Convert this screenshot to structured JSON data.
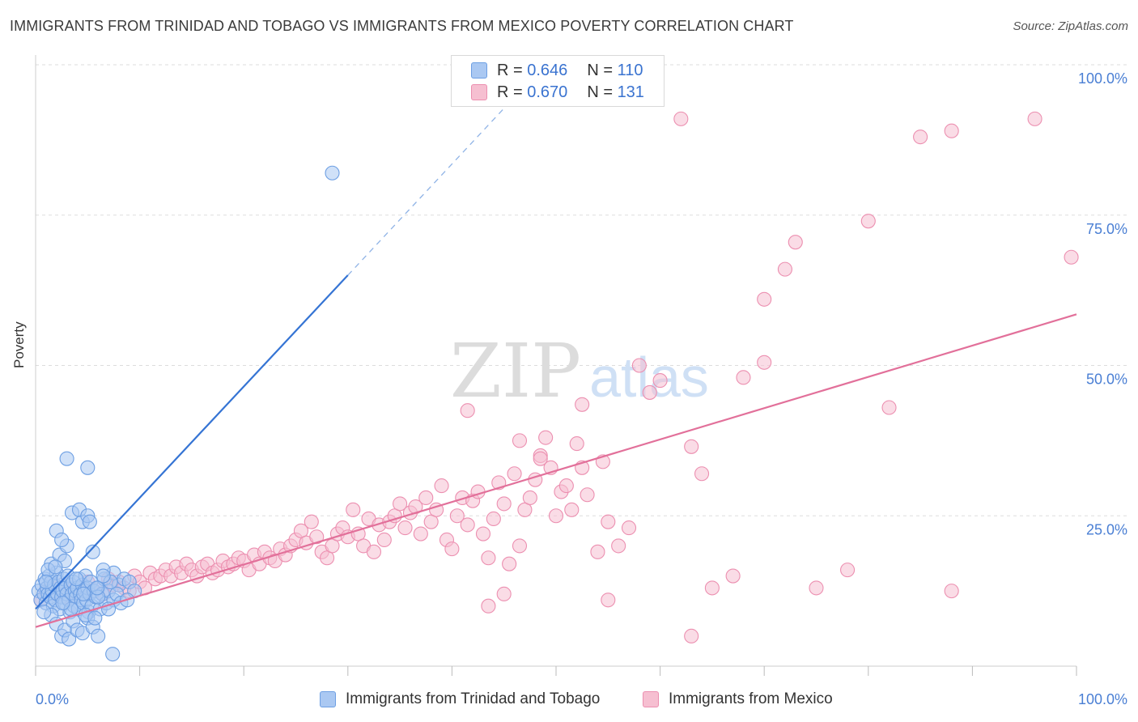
{
  "title": "IMMIGRANTS FROM TRINIDAD AND TOBAGO VS IMMIGRANTS FROM MEXICO POVERTY CORRELATION CHART",
  "source": "Source: ZipAtlas.com",
  "watermark": {
    "zip": "ZIP",
    "atlas": "atlas"
  },
  "stats": [
    {
      "r_label": "R =",
      "r_value": "0.646",
      "n_label": "N =",
      "n_value": "110"
    },
    {
      "r_label": "R =",
      "r_value": "0.670",
      "n_label": "N =",
      "n_value": "131"
    }
  ],
  "legend": [
    "Immigrants from Trinidad and Tobago",
    "Immigrants from Mexico"
  ],
  "colors": {
    "blue_fill": "#aac8f2",
    "blue_stroke": "#6d9fe3",
    "blue_line": "#3574d4",
    "pink_fill": "#f6bfd1",
    "pink_stroke": "#ec8fb0",
    "pink_line": "#e2709a",
    "tick_label": "#4a7fd4",
    "grid": "#dddddd"
  },
  "chart_data": {
    "type": "scatter",
    "title": "IMMIGRANTS FROM TRINIDAD AND TOBAGO VS IMMIGRANTS FROM MEXICO POVERTY CORRELATION CHART",
    "xlabel": "",
    "ylabel": "Poverty",
    "xlim": [
      0,
      100
    ],
    "ylim": [
      0,
      100
    ],
    "x_tick_labels": [
      "0.0%",
      "100.0%"
    ],
    "y_tick_labels": [
      "25.0%",
      "50.0%",
      "75.0%",
      "100.0%"
    ],
    "y_ticks": [
      25,
      50,
      75,
      100
    ],
    "grid": true,
    "legend_position": "bottom",
    "series": [
      {
        "name": "Immigrants from Trinidad and Tobago",
        "r": 0.646,
        "n": 110,
        "trend": {
          "x0": 0,
          "y0": 9.5,
          "x1": 30,
          "y1": 65,
          "dash_to_x": 45
        },
        "points": [
          [
            0.3,
            12.5
          ],
          [
            0.5,
            11
          ],
          [
            0.6,
            13.5
          ],
          [
            0.8,
            12
          ],
          [
            0.9,
            14.5
          ],
          [
            1.0,
            10.5
          ],
          [
            1.1,
            13
          ],
          [
            1.2,
            12
          ],
          [
            1.3,
            15
          ],
          [
            1.4,
            11.5
          ],
          [
            1.5,
            14
          ],
          [
            1.6,
            12.5
          ],
          [
            1.7,
            10
          ],
          [
            1.8,
            13.5
          ],
          [
            1.9,
            11
          ],
          [
            2.0,
            15.5
          ],
          [
            2.1,
            12
          ],
          [
            2.2,
            14
          ],
          [
            2.3,
            9.5
          ],
          [
            2.4,
            13
          ],
          [
            2.5,
            11.5
          ],
          [
            2.6,
            12.5
          ],
          [
            2.7,
            14.5
          ],
          [
            2.8,
            10.5
          ],
          [
            2.9,
            13
          ],
          [
            3.0,
            12
          ],
          [
            3.1,
            15
          ],
          [
            3.2,
            11
          ],
          [
            3.3,
            9
          ],
          [
            3.4,
            13.5
          ],
          [
            3.5,
            12
          ],
          [
            3.6,
            14
          ],
          [
            3.7,
            10
          ],
          [
            3.8,
            12.5
          ],
          [
            3.9,
            11.5
          ],
          [
            4.0,
            13
          ],
          [
            4.1,
            9.5
          ],
          [
            4.2,
            14.5
          ],
          [
            4.3,
            12
          ],
          [
            4.4,
            11
          ],
          [
            4.5,
            13.5
          ],
          [
            4.6,
            10.5
          ],
          [
            4.7,
            12.5
          ],
          [
            4.8,
            15
          ],
          [
            4.9,
            11
          ],
          [
            5.0,
            13
          ],
          [
            5.1,
            9
          ],
          [
            5.2,
            12
          ],
          [
            5.3,
            14
          ],
          [
            5.4,
            10
          ],
          [
            5.6,
            12.5
          ],
          [
            5.8,
            11.5
          ],
          [
            6.0,
            13
          ],
          [
            6.2,
            9.5
          ],
          [
            6.4,
            12
          ],
          [
            6.6,
            14.5
          ],
          [
            6.8,
            10.5
          ],
          [
            7.0,
            12.5
          ],
          [
            7.5,
            11
          ],
          [
            8.0,
            13.5
          ],
          [
            1.5,
            8.5
          ],
          [
            2.0,
            7
          ],
          [
            2.5,
            5
          ],
          [
            2.8,
            6
          ],
          [
            3.2,
            4.5
          ],
          [
            3.6,
            7.5
          ],
          [
            4.0,
            6
          ],
          [
            4.5,
            5.5
          ],
          [
            5.0,
            8
          ],
          [
            5.5,
            6.5
          ],
          [
            6.0,
            5
          ],
          [
            1.5,
            17
          ],
          [
            2.3,
            18.5
          ],
          [
            3.0,
            20
          ],
          [
            2.0,
            22.5
          ],
          [
            2.5,
            21
          ],
          [
            4.5,
            24
          ],
          [
            3.5,
            25.5
          ],
          [
            5.5,
            19
          ],
          [
            4.2,
            26
          ],
          [
            5.0,
            25
          ],
          [
            5.2,
            24
          ],
          [
            3.0,
            34.5
          ],
          [
            5.0,
            33
          ],
          [
            7.5,
            15.5
          ],
          [
            8.5,
            14.5
          ],
          [
            1.2,
            16
          ],
          [
            6.5,
            16
          ],
          [
            2.8,
            17.5
          ],
          [
            7.0,
            9.5
          ],
          [
            7.8,
            12
          ],
          [
            8.2,
            10.5
          ],
          [
            4.8,
            8.5
          ],
          [
            3.4,
            9.5
          ],
          [
            0.8,
            9
          ],
          [
            1.0,
            14
          ],
          [
            1.9,
            16.5
          ],
          [
            6.0,
            11.5
          ],
          [
            5.9,
            13
          ],
          [
            9.0,
            14
          ],
          [
            9.5,
            12.5
          ],
          [
            7.2,
            14
          ],
          [
            2.6,
            10.5
          ],
          [
            4.6,
            12
          ],
          [
            3.9,
            14.5
          ],
          [
            8.8,
            11
          ],
          [
            5.7,
            8
          ],
          [
            28.5,
            82
          ],
          [
            7.4,
            2
          ],
          [
            6.5,
            15
          ]
        ]
      },
      {
        "name": "Immigrants from Mexico",
        "r": 0.67,
        "n": 131,
        "trend": {
          "x0": 0,
          "y0": 6.5,
          "x1": 100,
          "y1": 58.5
        },
        "points": [
          [
            0.5,
            11
          ],
          [
            1.0,
            12.5
          ],
          [
            1.5,
            13
          ],
          [
            2.0,
            12
          ],
          [
            2.5,
            13.5
          ],
          [
            3.0,
            11.5
          ],
          [
            3.5,
            12.5
          ],
          [
            4.0,
            13
          ],
          [
            4.5,
            12
          ],
          [
            5.0,
            14
          ],
          [
            5.5,
            12.5
          ],
          [
            6.0,
            13
          ],
          [
            6.5,
            12
          ],
          [
            7.0,
            14.5
          ],
          [
            7.5,
            13.5
          ],
          [
            8.0,
            14
          ],
          [
            8.5,
            13
          ],
          [
            9.0,
            12.5
          ],
          [
            9.5,
            15
          ],
          [
            10.0,
            14
          ],
          [
            10.5,
            13
          ],
          [
            11.0,
            15.5
          ],
          [
            11.5,
            14.5
          ],
          [
            12.0,
            15
          ],
          [
            12.5,
            16
          ],
          [
            13.0,
            15
          ],
          [
            13.5,
            16.5
          ],
          [
            14.0,
            15.5
          ],
          [
            14.5,
            17
          ],
          [
            15.0,
            16
          ],
          [
            15.5,
            15
          ],
          [
            16.0,
            16.5
          ],
          [
            16.5,
            17
          ],
          [
            17.0,
            15.5
          ],
          [
            17.5,
            16
          ],
          [
            18.0,
            17.5
          ],
          [
            18.5,
            16.5
          ],
          [
            19.0,
            17
          ],
          [
            19.5,
            18
          ],
          [
            20.0,
            17.5
          ],
          [
            20.5,
            16
          ],
          [
            21.0,
            18.5
          ],
          [
            21.5,
            17
          ],
          [
            22.0,
            19
          ],
          [
            22.5,
            18
          ],
          [
            23.0,
            17.5
          ],
          [
            23.5,
            19.5
          ],
          [
            24.0,
            18.5
          ],
          [
            24.5,
            20
          ],
          [
            25.0,
            21
          ],
          [
            25.5,
            22.5
          ],
          [
            26.0,
            20.5
          ],
          [
            26.5,
            24
          ],
          [
            27.0,
            21.5
          ],
          [
            27.5,
            19
          ],
          [
            28.0,
            18
          ],
          [
            28.5,
            20
          ],
          [
            29.0,
            22
          ],
          [
            29.5,
            23
          ],
          [
            30.0,
            21.5
          ],
          [
            30.5,
            26
          ],
          [
            31.0,
            22
          ],
          [
            31.5,
            20
          ],
          [
            32.0,
            24.5
          ],
          [
            32.5,
            19
          ],
          [
            33.0,
            23.5
          ],
          [
            33.5,
            21
          ],
          [
            34.0,
            24
          ],
          [
            34.5,
            25
          ],
          [
            35.0,
            27
          ],
          [
            35.5,
            23
          ],
          [
            36.0,
            25.5
          ],
          [
            36.5,
            26.5
          ],
          [
            37.0,
            22
          ],
          [
            37.5,
            28
          ],
          [
            38.0,
            24
          ],
          [
            38.5,
            26
          ],
          [
            39.0,
            30
          ],
          [
            39.5,
            21
          ],
          [
            40.0,
            19.5
          ],
          [
            40.5,
            25
          ],
          [
            41.0,
            28
          ],
          [
            41.5,
            23.5
          ],
          [
            42.0,
            27.5
          ],
          [
            42.5,
            29
          ],
          [
            43.0,
            22
          ],
          [
            43.5,
            18
          ],
          [
            44.0,
            24.5
          ],
          [
            44.5,
            30.5
          ],
          [
            45.0,
            27
          ],
          [
            45.5,
            17
          ],
          [
            46.0,
            32
          ],
          [
            46.5,
            20
          ],
          [
            47.0,
            26
          ],
          [
            47.5,
            28
          ],
          [
            48.0,
            31
          ],
          [
            48.5,
            35
          ],
          [
            49.0,
            38
          ],
          [
            49.5,
            33
          ],
          [
            50.0,
            25
          ],
          [
            50.5,
            29
          ],
          [
            51.0,
            30
          ],
          [
            51.5,
            26
          ],
          [
            52.0,
            37
          ],
          [
            52.5,
            33
          ],
          [
            53.0,
            28.5
          ],
          [
            54.0,
            19
          ],
          [
            55.0,
            24
          ],
          [
            56.0,
            20
          ],
          [
            57.0,
            23
          ],
          [
            41.5,
            42.5
          ],
          [
            46.5,
            37.5
          ],
          [
            48.5,
            34.5
          ],
          [
            52.5,
            43.5
          ],
          [
            54.5,
            34
          ],
          [
            58.0,
            50
          ],
          [
            60.0,
            47.5
          ],
          [
            63.0,
            36.5
          ],
          [
            64.0,
            32
          ],
          [
            67.0,
            15
          ],
          [
            68.0,
            48
          ],
          [
            70.0,
            61
          ],
          [
            72.0,
            66
          ],
          [
            73.0,
            70.5
          ],
          [
            75.0,
            13
          ],
          [
            78.0,
            16
          ],
          [
            80.0,
            74
          ],
          [
            82.0,
            43
          ],
          [
            85.0,
            88
          ],
          [
            88.0,
            89
          ],
          [
            62.0,
            91
          ],
          [
            96.0,
            91
          ],
          [
            99.5,
            68
          ],
          [
            65.0,
            13
          ],
          [
            63.0,
            5
          ],
          [
            45.0,
            12
          ],
          [
            55.0,
            11
          ],
          [
            43.5,
            10
          ],
          [
            70.0,
            50.5
          ],
          [
            59.0,
            45.5
          ],
          [
            88.0,
            12.5
          ]
        ]
      }
    ]
  }
}
